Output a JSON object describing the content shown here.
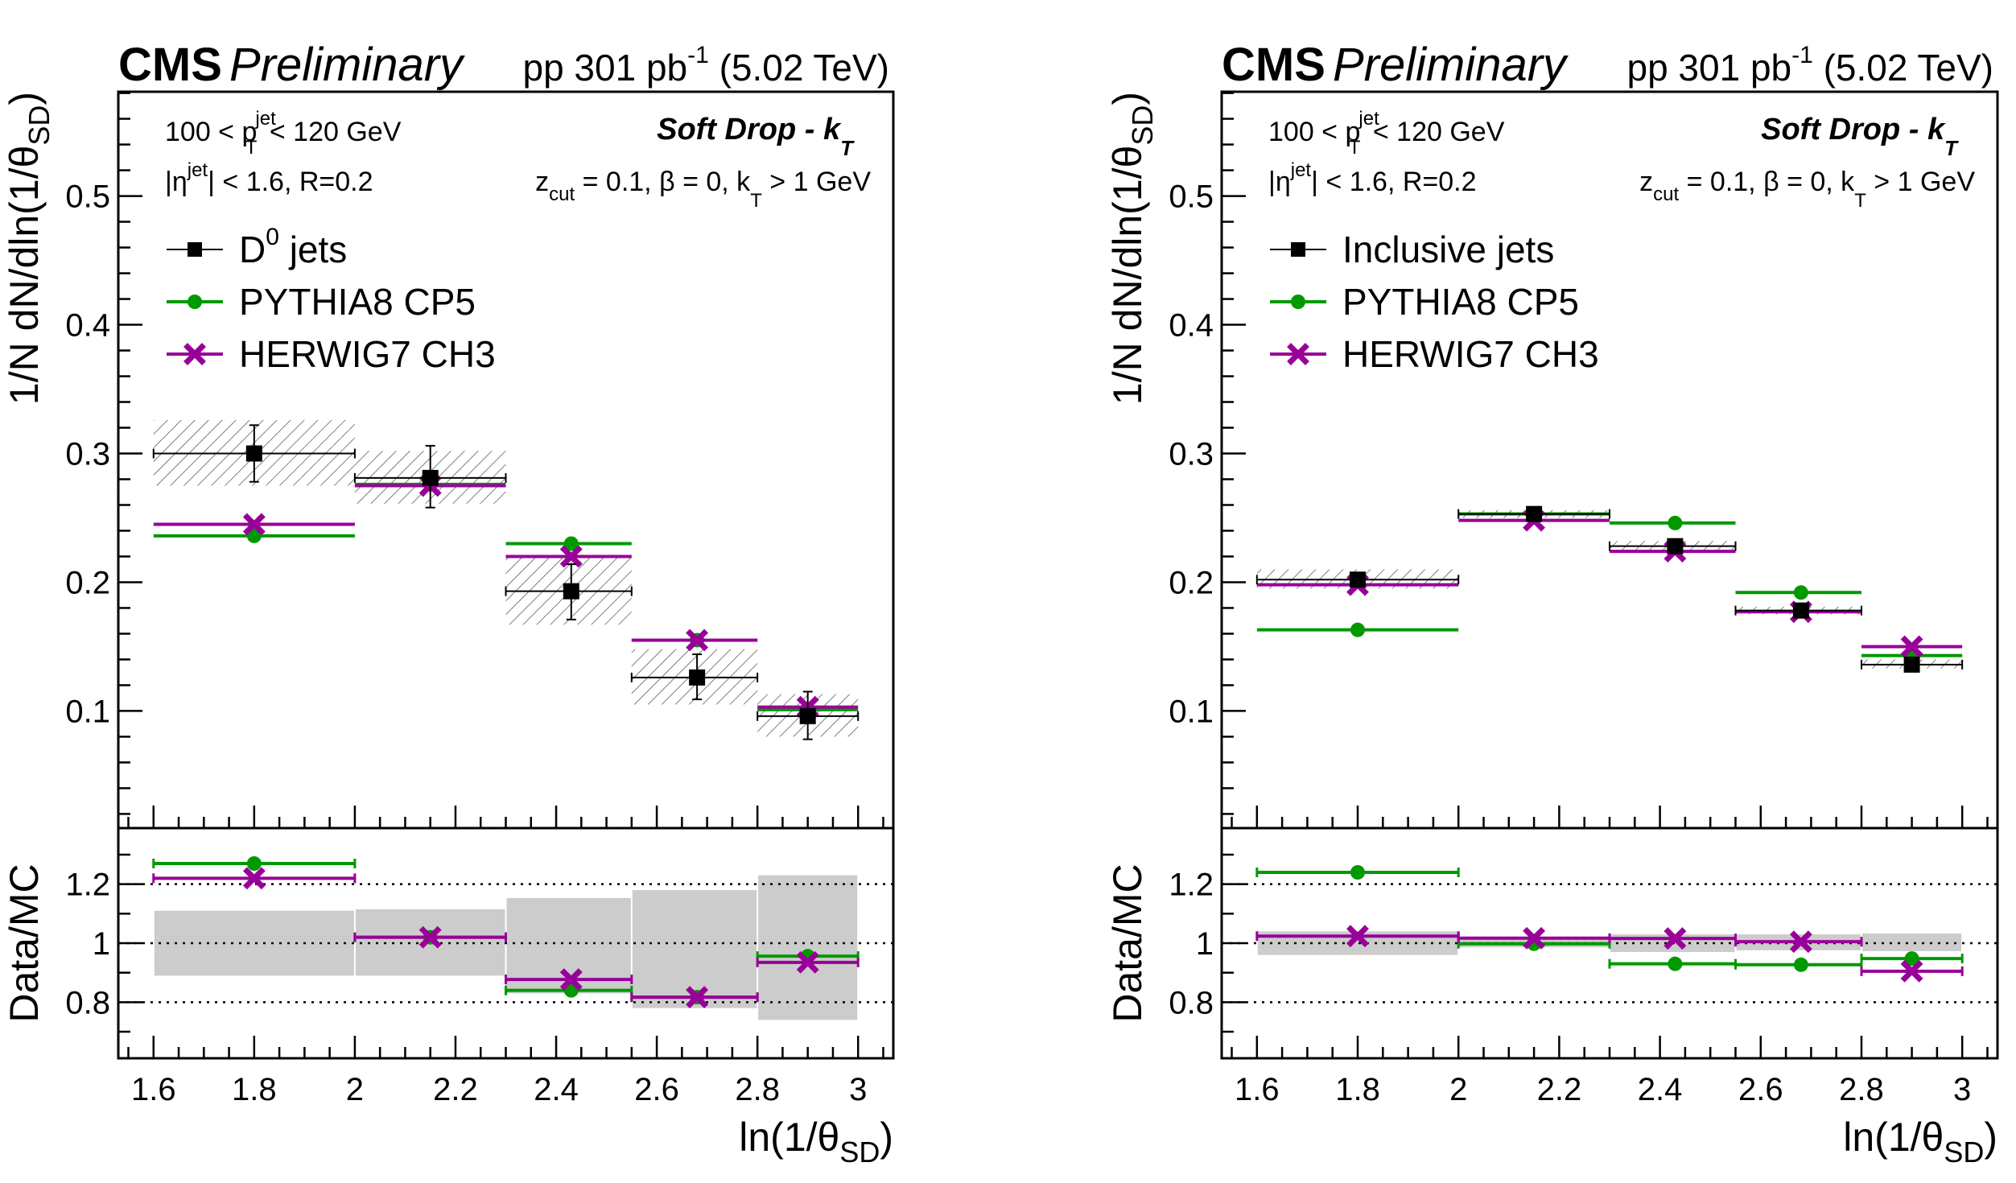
{
  "chart_data": [
    {
      "type": "scatter",
      "panel": "left",
      "header": {
        "experiment": "CMS",
        "status": "Preliminary",
        "lumi": "pp 301 pb",
        "lumi_sup": "-1",
        "energy": "(5.02 TeV)"
      },
      "annotations": {
        "pt_range": [
          "100 < p",
          "jet",
          "T",
          " < 120 GeV"
        ],
        "eta_cut": [
          "|η",
          "jet",
          "| < 1.6, R=0.2"
        ],
        "algo_title": [
          "Soft Drop - k",
          "T"
        ],
        "algo_params": [
          "z",
          "cut",
          " = 0.1, β = 0, k",
          "T",
          " > 1 GeV"
        ]
      },
      "xlabel": "ln(1/θ_SD)",
      "ylabel": "1/N dN/dln(1/θ_SD)",
      "ratio_ylabel": "Data/MC",
      "xlim": [
        1.53,
        3.07
      ],
      "ylim": [
        0.009,
        0.581
      ],
      "ratio_ylim": [
        0.61,
        1.39
      ],
      "xticks": [
        1.6,
        1.8,
        2,
        2.2,
        2.4,
        2.6,
        2.8,
        3
      ],
      "xtick_labels": [
        "1.6",
        "1.8",
        "2",
        "2.2",
        "2.4",
        "2.6",
        "2.8",
        "3"
      ],
      "yticks": [
        0.1,
        0.2,
        0.3,
        0.4,
        0.5
      ],
      "ytick_labels": [
        "0.1",
        "0.2",
        "0.3",
        "0.4",
        "0.5"
      ],
      "ratio_yticks": [
        0.8,
        1.0,
        1.2
      ],
      "ratio_ytick_labels": [
        "0.8",
        "1",
        "1.2"
      ],
      "ratio_gridlines": [
        0.8,
        1.0,
        1.2
      ],
      "bin_edges": [
        1.6,
        2.0,
        2.3,
        2.55,
        2.8,
        3.0
      ],
      "bin_centers": [
        1.8,
        2.15,
        2.43,
        2.68,
        2.9
      ],
      "legend_position": "top-left",
      "series": [
        {
          "name": "D⁰ jets",
          "legend_label": [
            "D",
            "0",
            " jets"
          ],
          "kind": "data",
          "color": "#000000",
          "marker": "square",
          "values": [
            0.3,
            0.281,
            0.193,
            0.126,
            0.096
          ],
          "stat_err_up": [
            0.022,
            0.025,
            0.021,
            0.018,
            0.019
          ],
          "stat_err_down": [
            0.022,
            0.023,
            0.022,
            0.017,
            0.018
          ],
          "syst_band": [
            [
              0.275,
              0.326
            ],
            [
              0.261,
              0.302
            ],
            [
              0.167,
              0.219
            ],
            [
              0.105,
              0.148
            ],
            [
              0.08,
              0.113
            ]
          ]
        },
        {
          "name": "PYTHIA8 CP5",
          "legend_label": [
            "PYTHIA8 CP5",
            "",
            ""
          ],
          "kind": "mc",
          "color": "#009900",
          "marker": "circle",
          "values": [
            0.236,
            0.276,
            0.23,
            0.155,
            0.101
          ],
          "ratio": [
            1.27,
            1.02,
            0.84,
            0.817,
            0.956
          ]
        },
        {
          "name": "HERWIG7 CH3",
          "legend_label": [
            "HERWIG7 CH3",
            "",
            ""
          ],
          "kind": "mc",
          "color": "#990099",
          "marker": "cross",
          "values": [
            0.245,
            0.275,
            0.22,
            0.155,
            0.103
          ],
          "ratio": [
            1.22,
            1.02,
            0.877,
            0.817,
            0.935
          ]
        }
      ],
      "ratio_syst_band": [
        [
          0.89,
          1.11
        ],
        [
          0.89,
          1.115
        ],
        [
          0.83,
          1.153
        ],
        [
          0.78,
          1.18
        ],
        [
          0.74,
          1.23
        ]
      ]
    },
    {
      "type": "scatter",
      "panel": "right",
      "header": {
        "experiment": "CMS",
        "status": "Preliminary",
        "lumi": "pp 301 pb",
        "lumi_sup": "-1",
        "energy": "(5.02 TeV)"
      },
      "annotations": {
        "pt_range": [
          "100 < p",
          "jet",
          "T",
          " < 120 GeV"
        ],
        "eta_cut": [
          "|η",
          "jet",
          "| < 1.6, R=0.2"
        ],
        "algo_title": [
          "Soft Drop - k",
          "T"
        ],
        "algo_params": [
          "z",
          "cut",
          " = 0.1, β = 0, k",
          "T",
          " > 1 GeV"
        ]
      },
      "xlabel": "ln(1/θ_SD)",
      "ylabel": "1/N dN/dln(1/θ_SD)",
      "ratio_ylabel": "Data/MC",
      "xlim": [
        1.53,
        3.07
      ],
      "ylim": [
        0.009,
        0.581
      ],
      "ratio_ylim": [
        0.61,
        1.39
      ],
      "xticks": [
        1.6,
        1.8,
        2,
        2.2,
        2.4,
        2.6,
        2.8,
        3
      ],
      "xtick_labels": [
        "1.6",
        "1.8",
        "2",
        "2.2",
        "2.4",
        "2.6",
        "2.8",
        "3"
      ],
      "yticks": [
        0.1,
        0.2,
        0.3,
        0.4,
        0.5
      ],
      "ytick_labels": [
        "0.1",
        "0.2",
        "0.3",
        "0.4",
        "0.5"
      ],
      "ratio_yticks": [
        0.8,
        1.0,
        1.2
      ],
      "ratio_ytick_labels": [
        "0.8",
        "1",
        "1.2"
      ],
      "ratio_gridlines": [
        0.8,
        1.0,
        1.2
      ],
      "bin_edges": [
        1.6,
        2.0,
        2.3,
        2.55,
        2.8,
        3.0
      ],
      "bin_centers": [
        1.8,
        2.15,
        2.43,
        2.68,
        2.9
      ],
      "legend_position": "top-left",
      "series": [
        {
          "name": "Inclusive jets",
          "legend_label": [
            "Inclusive jets",
            "",
            ""
          ],
          "kind": "data",
          "color": "#000000",
          "marker": "square",
          "values": [
            0.202,
            0.253,
            0.228,
            0.178,
            0.136
          ],
          "stat_err_up": [
            0.002,
            0.002,
            0.002,
            0.002,
            0.003
          ],
          "stat_err_down": [
            0.002,
            0.002,
            0.002,
            0.002,
            0.003
          ],
          "syst_band": [
            [
              0.195,
              0.21
            ],
            [
              0.25,
              0.256
            ],
            [
              0.224,
              0.232
            ],
            [
              0.175,
              0.181
            ],
            [
              0.133,
              0.14
            ]
          ]
        },
        {
          "name": "PYTHIA8 CP5",
          "legend_label": [
            "PYTHIA8 CP5",
            "",
            ""
          ],
          "kind": "mc",
          "color": "#009900",
          "marker": "circle",
          "values": [
            0.163,
            0.253,
            0.246,
            0.192,
            0.143
          ],
          "ratio": [
            1.24,
            0.998,
            0.93,
            0.927,
            0.948
          ]
        },
        {
          "name": "HERWIG7 CH3",
          "legend_label": [
            "HERWIG7 CH3",
            "",
            ""
          ],
          "kind": "mc",
          "color": "#990099",
          "marker": "cross",
          "values": [
            0.198,
            0.248,
            0.224,
            0.177,
            0.15
          ],
          "ratio": [
            1.024,
            1.017,
            1.016,
            1.005,
            0.905
          ]
        }
      ],
      "ratio_syst_band": [
        [
          0.96,
          1.04
        ],
        [
          0.986,
          1.014
        ],
        [
          0.97,
          1.03
        ],
        [
          0.976,
          1.03
        ],
        [
          0.973,
          1.033
        ]
      ]
    }
  ]
}
